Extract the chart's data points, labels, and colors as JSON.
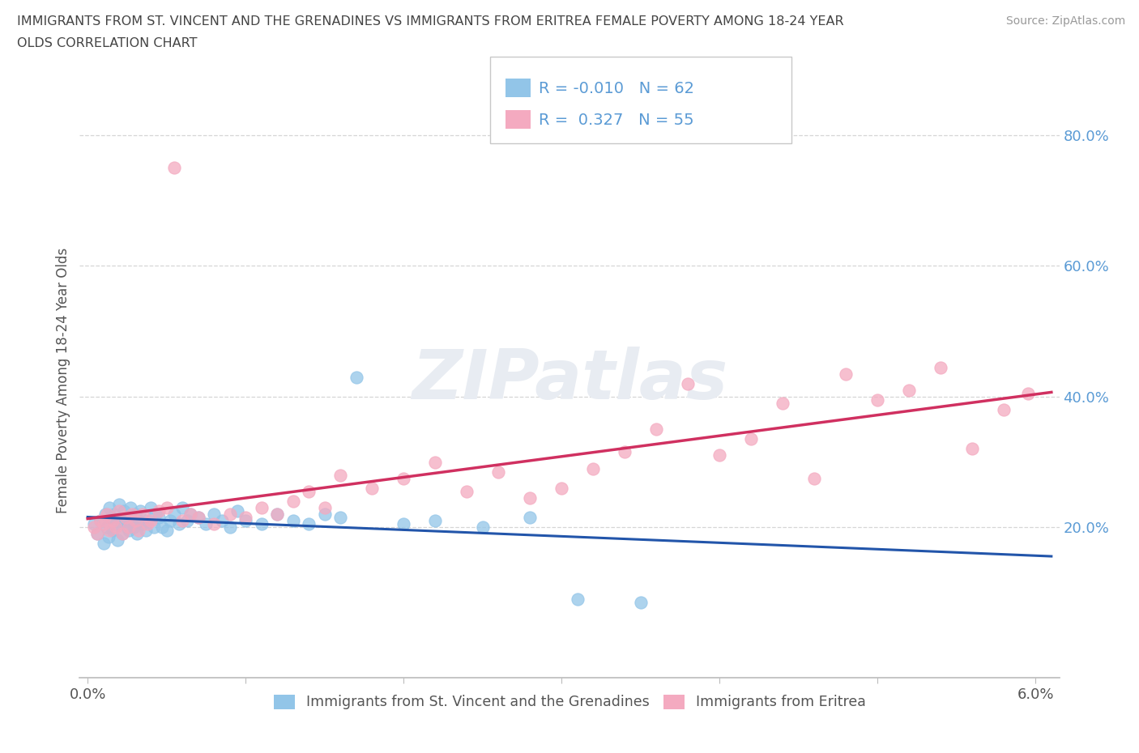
{
  "title_line1": "IMMIGRANTS FROM ST. VINCENT AND THE GRENADINES VS IMMIGRANTS FROM ERITREA FEMALE POVERTY AMONG 18-24 YEAR",
  "title_line2": "OLDS CORRELATION CHART",
  "source": "Source: ZipAtlas.com",
  "ylabel": "Female Poverty Among 18-24 Year Olds",
  "xlim": [
    -0.05,
    6.15
  ],
  "ylim": [
    -3.0,
    88.0
  ],
  "ytick_vals": [
    20.0,
    40.0,
    60.0,
    80.0
  ],
  "ytick_labels": [
    "20.0%",
    "40.0%",
    "60.0%",
    "80.0%"
  ],
  "blue_color": "#92c5e8",
  "pink_color": "#f4aac0",
  "blue_line_color": "#2255aa",
  "pink_line_color": "#d03060",
  "legend_R1": "-0.010",
  "legend_N1": "62",
  "legend_R2": "0.327",
  "legend_N2": "55",
  "label1": "Immigrants from St. Vincent and the Grenadines",
  "label2": "Immigrants from Eritrea",
  "watermark": "ZIPatlas",
  "R_N_color": "#5b9bd5",
  "grid_color": "#cccccc",
  "axis_color": "#bbbbbb",
  "text_color": "#555555",
  "title_color": "#444444",
  "blue_x": [
    0.04,
    0.06,
    0.08,
    0.1,
    0.11,
    0.12,
    0.13,
    0.14,
    0.15,
    0.16,
    0.17,
    0.18,
    0.19,
    0.2,
    0.21,
    0.22,
    0.23,
    0.24,
    0.25,
    0.26,
    0.27,
    0.28,
    0.29,
    0.3,
    0.31,
    0.32,
    0.33,
    0.35,
    0.37,
    0.38,
    0.4,
    0.42,
    0.43,
    0.45,
    0.47,
    0.5,
    0.52,
    0.55,
    0.58,
    0.6,
    0.63,
    0.65,
    0.7,
    0.75,
    0.8,
    0.85,
    0.9,
    0.95,
    1.0,
    1.1,
    1.2,
    1.3,
    1.4,
    1.5,
    1.6,
    1.7,
    2.0,
    2.2,
    2.5,
    2.8,
    3.1,
    3.5
  ],
  "blue_y": [
    20.5,
    19.0,
    21.0,
    17.5,
    22.0,
    20.0,
    18.5,
    23.0,
    21.5,
    19.5,
    22.0,
    20.5,
    18.0,
    23.5,
    21.0,
    19.0,
    22.5,
    21.0,
    20.0,
    19.5,
    23.0,
    21.5,
    20.0,
    22.0,
    19.0,
    21.0,
    22.5,
    20.5,
    19.5,
    21.0,
    23.0,
    20.0,
    22.0,
    21.5,
    20.0,
    19.5,
    21.0,
    22.0,
    20.5,
    23.0,
    21.0,
    22.0,
    21.5,
    20.5,
    22.0,
    21.0,
    20.0,
    22.5,
    21.0,
    20.5,
    22.0,
    21.0,
    20.5,
    22.0,
    21.5,
    43.0,
    20.5,
    21.0,
    20.0,
    21.5,
    9.0,
    8.5
  ],
  "pink_x": [
    0.04,
    0.06,
    0.08,
    0.1,
    0.12,
    0.14,
    0.16,
    0.18,
    0.2,
    0.22,
    0.24,
    0.26,
    0.28,
    0.3,
    0.32,
    0.35,
    0.38,
    0.4,
    0.45,
    0.5,
    0.55,
    0.6,
    0.65,
    0.7,
    0.8,
    0.9,
    1.0,
    1.1,
    1.2,
    1.3,
    1.4,
    1.5,
    1.6,
    1.8,
    2.0,
    2.2,
    2.4,
    2.6,
    2.8,
    3.0,
    3.2,
    3.4,
    3.6,
    3.8,
    4.0,
    4.2,
    4.4,
    4.6,
    4.8,
    5.0,
    5.2,
    5.4,
    5.6,
    5.8,
    5.95
  ],
  "pink_y": [
    20.0,
    19.0,
    21.0,
    20.5,
    22.0,
    19.5,
    21.0,
    20.0,
    22.5,
    19.0,
    21.5,
    20.0,
    22.0,
    21.0,
    19.5,
    22.0,
    20.5,
    21.0,
    22.5,
    23.0,
    75.0,
    21.0,
    22.0,
    21.5,
    20.5,
    22.0,
    21.5,
    23.0,
    22.0,
    24.0,
    25.5,
    23.0,
    28.0,
    26.0,
    27.5,
    30.0,
    25.5,
    28.5,
    24.5,
    26.0,
    29.0,
    31.5,
    35.0,
    42.0,
    31.0,
    33.5,
    39.0,
    27.5,
    43.5,
    39.5,
    41.0,
    44.5,
    32.0,
    38.0,
    40.5
  ]
}
